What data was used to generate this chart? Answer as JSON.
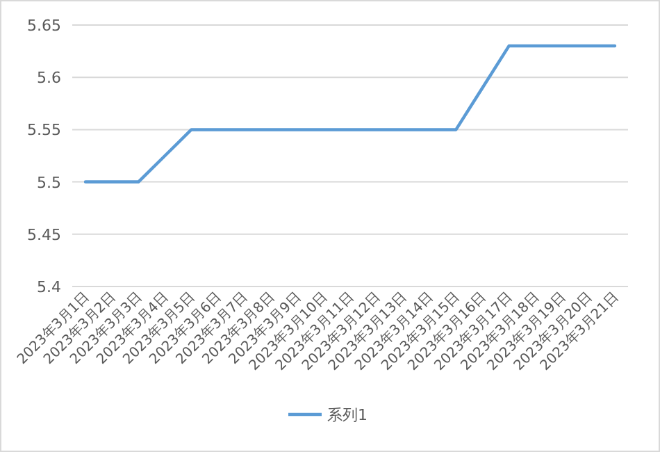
{
  "chart_data": {
    "type": "line",
    "categories": [
      "2023年3月1日",
      "2023年3月2日",
      "2023年3月3日",
      "2023年3月4日",
      "2023年3月5日",
      "2023年3月6日",
      "2023年3月7日",
      "2023年3月8日",
      "2023年3月9日",
      "2023年3月10日",
      "2023年3月11日",
      "2023年3月12日",
      "2023年3月13日",
      "2023年3月14日",
      "2023年3月15日",
      "2023年3月16日",
      "2023年3月17日",
      "2023年3月18日",
      "2023年3月19日",
      "2023年3月20日",
      "2023年3月21日"
    ],
    "series": [
      {
        "name": "系列1",
        "color": "#5b9bd5",
        "values": [
          5.5,
          5.5,
          5.5,
          5.525,
          5.55,
          5.55,
          5.55,
          5.55,
          5.55,
          5.55,
          5.55,
          5.55,
          5.55,
          5.55,
          5.55,
          5.59,
          5.63,
          5.63,
          5.63,
          5.63,
          5.63
        ]
      }
    ],
    "ylim": [
      5.4,
      5.65
    ],
    "yticks": [
      5.4,
      5.45,
      5.5,
      5.55,
      5.6,
      5.65
    ],
    "grid": "y",
    "legend": "bottom"
  }
}
